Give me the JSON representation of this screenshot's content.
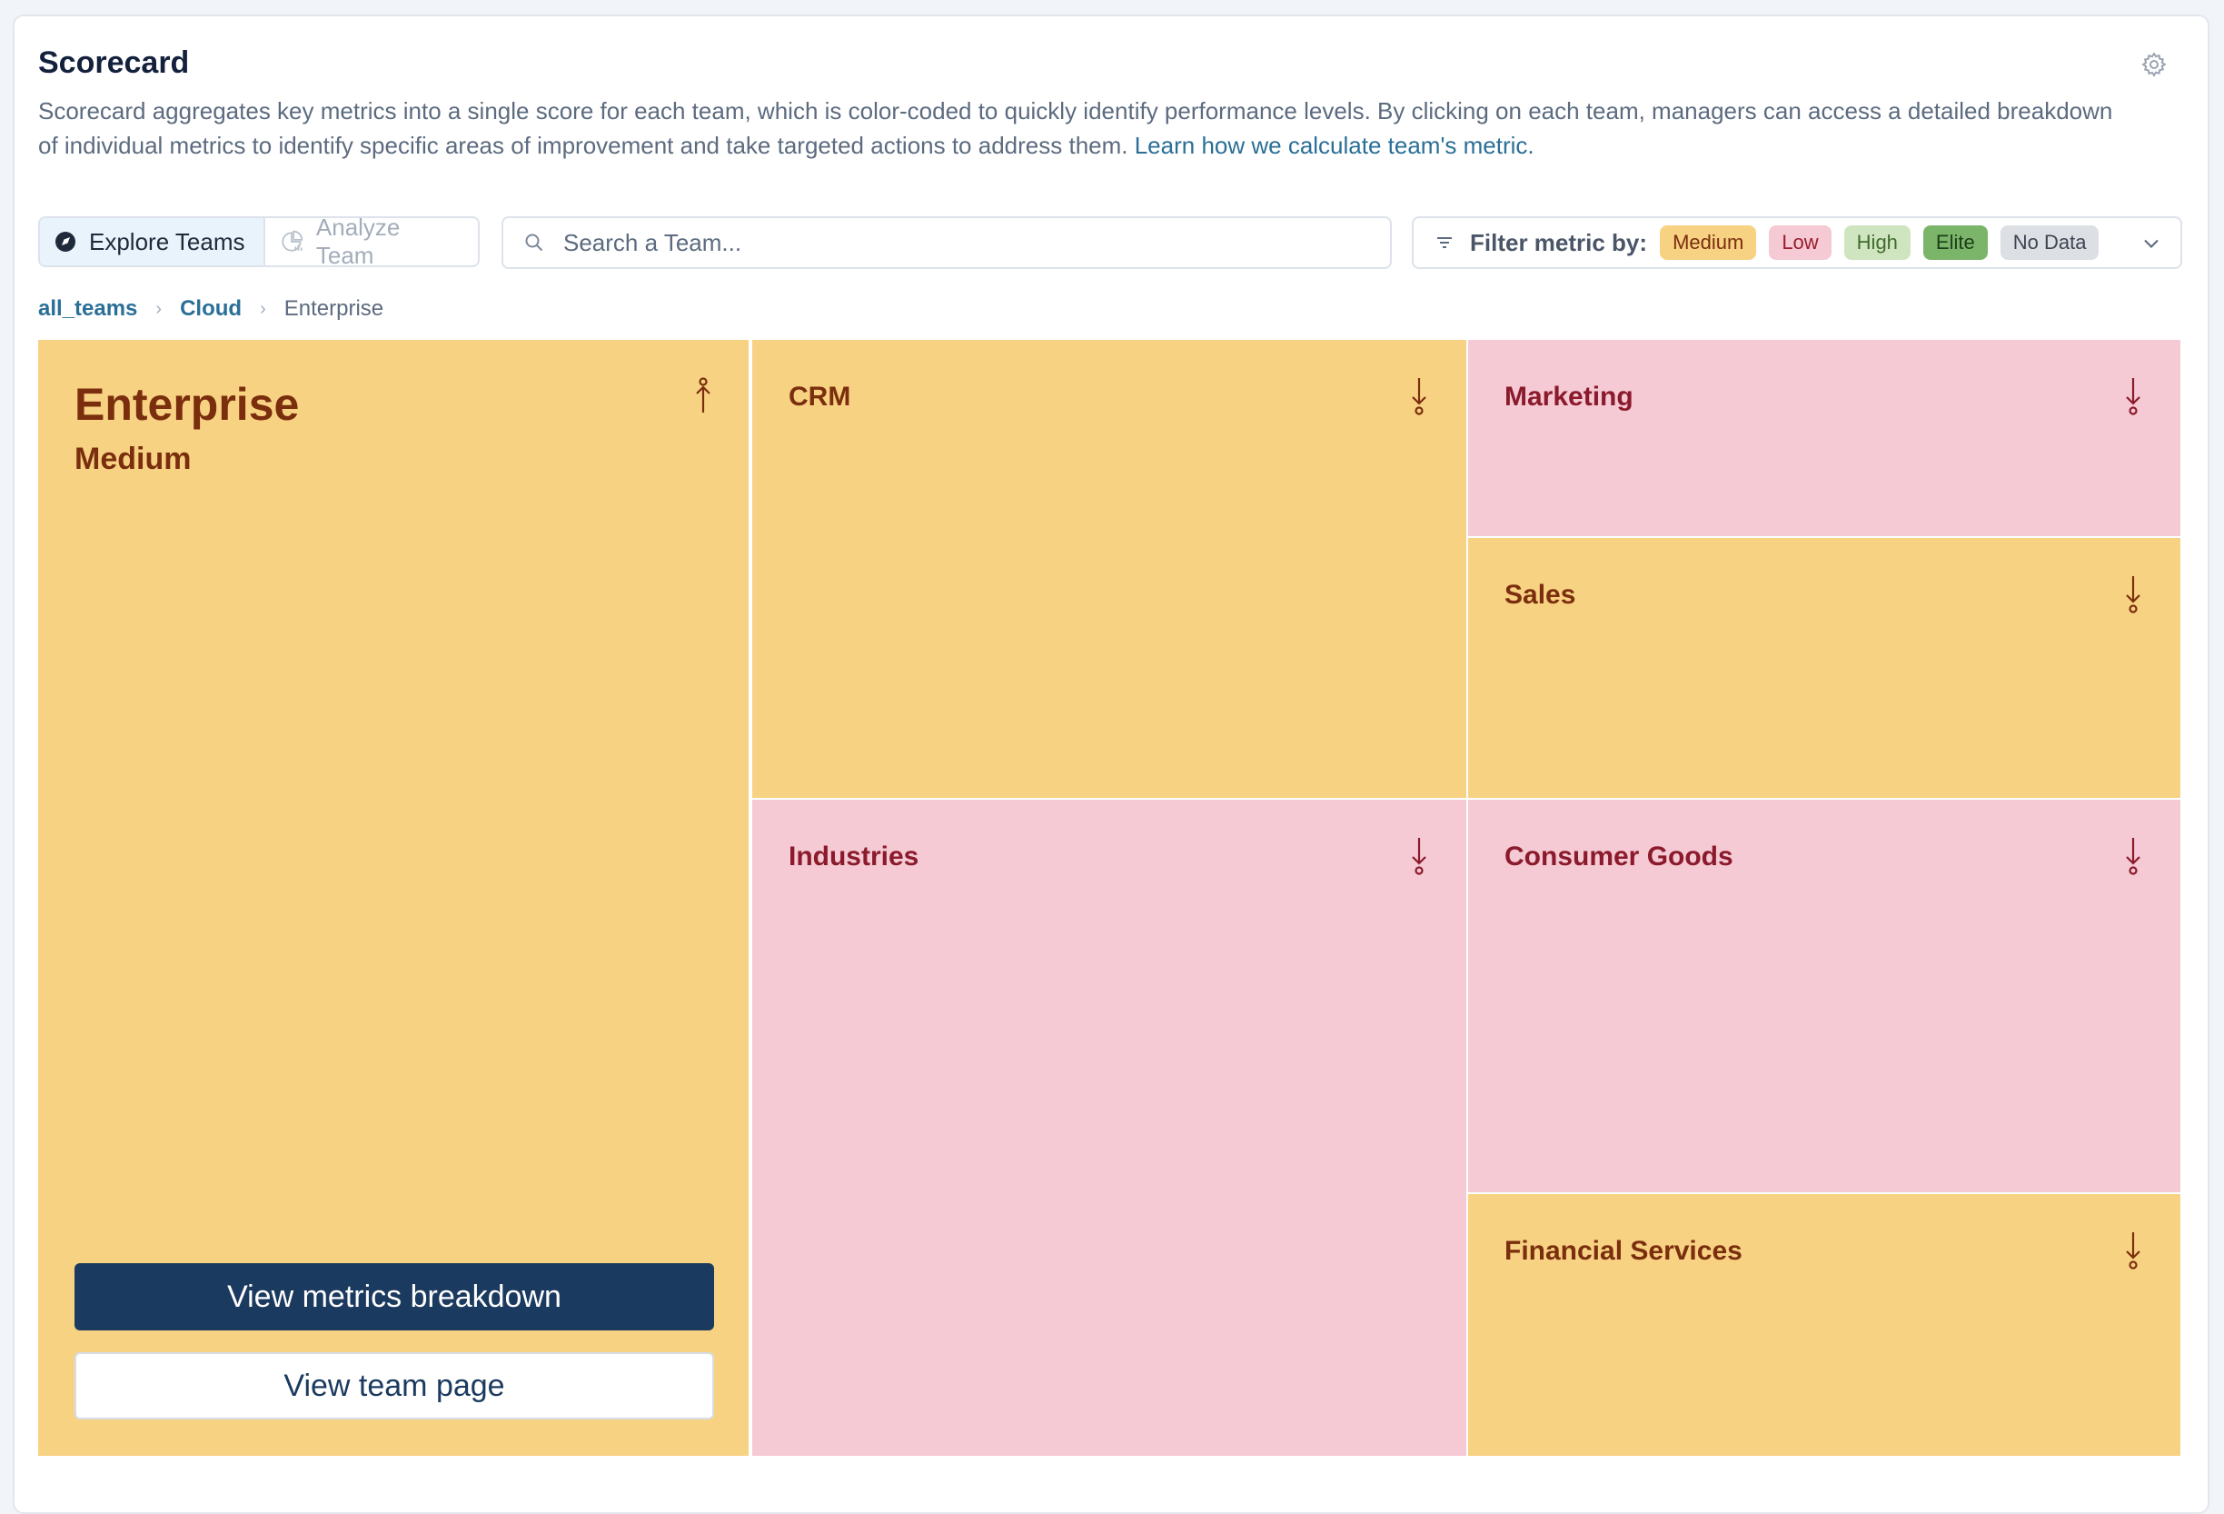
{
  "header": {
    "title": "Scorecard",
    "description": "Scorecard aggregates key metrics into a single score for each team, which is color-coded to quickly identify performance levels. By clicking on each team, managers can access a detailed breakdown of individual metrics to identify specific areas of improvement and take targeted actions to address them. ",
    "learn_link": "Learn how we calculate team's metric."
  },
  "toolbar": {
    "tabs": [
      {
        "label": "Explore Teams",
        "active": true,
        "icon": "explore-icon"
      },
      {
        "label": "Analyze Team",
        "active": false,
        "icon": "analyze-icon"
      }
    ],
    "search": {
      "placeholder": "Search a Team...",
      "value": ""
    },
    "filter": {
      "label": "Filter metric by:",
      "chips": [
        {
          "label": "Medium",
          "bg": "#f8d283",
          "fg": "#7a2e0e"
        },
        {
          "label": "Low",
          "bg": "#f5cad4",
          "fg": "#9b1c2e"
        },
        {
          "label": "High",
          "bg": "#cfe5c0",
          "fg": "#3f6b2c"
        },
        {
          "label": "Elite",
          "bg": "#7ab56a",
          "fg": "#1f3d17"
        },
        {
          "label": "No Data",
          "bg": "#dcdfe4",
          "fg": "#3e4652"
        }
      ]
    }
  },
  "breadcrumb": {
    "items": [
      "all_teams",
      "Cloud"
    ],
    "current": "Enterprise"
  },
  "colors": {
    "medium": "#f8d283",
    "low": "#f5cad4",
    "medium_text": "#7a2e0e",
    "low_text": "#8a1a2c"
  },
  "treemap": {
    "selected": {
      "name": "Enterprise",
      "level": "Medium",
      "trend": "up",
      "primary_button": "View metrics breakdown",
      "secondary_button": "View team page"
    },
    "teams": [
      {
        "name": "CRM",
        "level": "Medium",
        "trend": "down"
      },
      {
        "name": "Marketing",
        "level": "Low",
        "trend": "down"
      },
      {
        "name": "Sales",
        "level": "Medium",
        "trend": "down"
      },
      {
        "name": "Industries",
        "level": "Low",
        "trend": "down"
      },
      {
        "name": "Consumer Goods",
        "level": "Low",
        "trend": "down"
      },
      {
        "name": "Financial Services",
        "level": "Medium",
        "trend": "down"
      }
    ]
  }
}
